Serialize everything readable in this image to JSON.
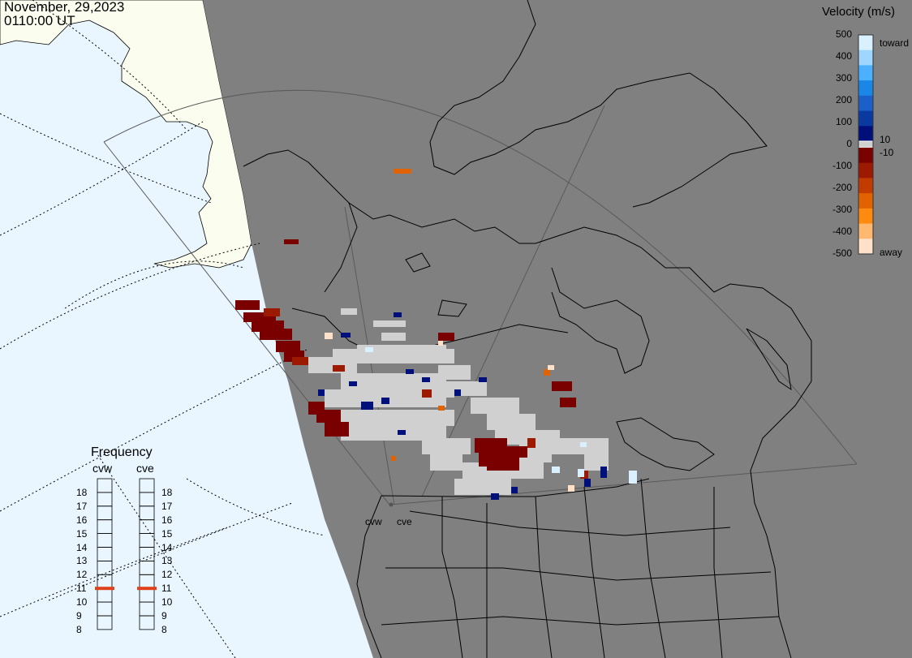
{
  "header": {
    "date": "November, 29,2023",
    "time": "0110:00 UT"
  },
  "velocity_legend": {
    "title": "Velocity (m/s)",
    "ticks": [
      "500",
      "400",
      "300",
      "200",
      "100",
      "0",
      "-100",
      "-200",
      "-300",
      "-400",
      "-500"
    ],
    "inner_ticks": [
      "10",
      "-10"
    ],
    "toward_label": "toward",
    "away_label": "away",
    "colors_toward": [
      "#d8f0ff",
      "#9ed6ff",
      "#4ab0ff",
      "#1a86e6",
      "#1a60c8",
      "#0a3aa0",
      "#00107a"
    ],
    "colors_away": [
      "#7a0000",
      "#9c1a00",
      "#c23c00",
      "#e06200",
      "#ff8a10",
      "#ffb870",
      "#ffe0c8"
    ],
    "ground_scatter_color": "#d0d0d0"
  },
  "frequency_legend": {
    "title": "Frequency",
    "radars": [
      {
        "code": "cvw",
        "frequency_mhz": 11
      },
      {
        "code": "cve",
        "frequency_mhz": 11
      }
    ],
    "levels": [
      "18",
      "17",
      "16",
      "15",
      "14",
      "13",
      "12",
      "11",
      "10",
      "9",
      "8"
    ],
    "marker_color": "#e0401a"
  },
  "radar_sites": [
    {
      "code": "cvw"
    },
    {
      "code": "cve"
    }
  ],
  "map_colors": {
    "night": "#808080",
    "ocean_day": "#eaf6ff",
    "land_day": "#fbfdef"
  }
}
